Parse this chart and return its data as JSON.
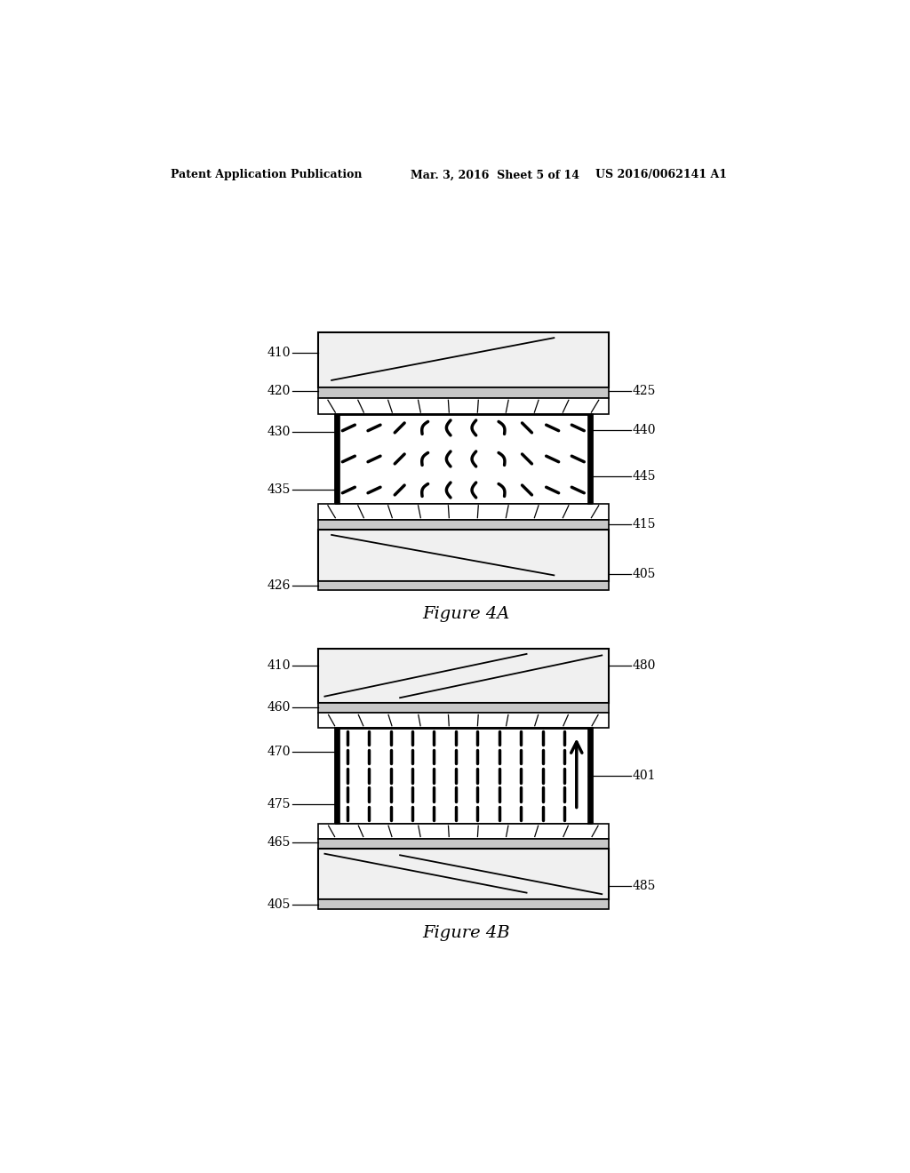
{
  "bg_color": "#ffffff",
  "header_left": "Patent Application Publication",
  "header_mid": "Mar. 3, 2016  Sheet 5 of 14",
  "header_right": "US 2016/0062141 A1",
  "fig4a_title": "Figure 4A",
  "fig4b_title": "Figure 4B"
}
